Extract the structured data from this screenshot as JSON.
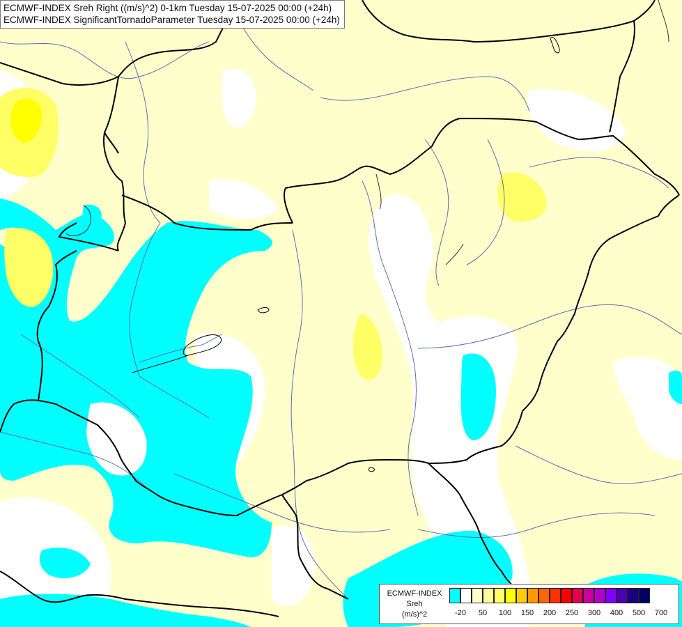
{
  "header": {
    "line1": "ECMWF-INDEX Sreh Right ((m/s)^2) 0-1km Tuesday 15-07-2025 00:00 (+24h)",
    "line2": "ECMWF-INDEX SignificantTornadoParameter Tuesday 15-07-2025 00:00 (+24h)"
  },
  "legend": {
    "title_line1": "ECMWF-INDEX",
    "title_line2": "Sreh",
    "title_line3": "(m/s)^2",
    "colors": [
      "#00ffff",
      "#ffffff",
      "#ffffcc",
      "#ffff99",
      "#ffff66",
      "#ffff00",
      "#ffcc00",
      "#ff9900",
      "#ff6600",
      "#ff3300",
      "#ff0000",
      "#e6004c",
      "#cc0099",
      "#b300cc",
      "#8000ff",
      "#4d00b3",
      "#1a0080",
      "#000066"
    ],
    "ticks": [
      "-20",
      "50",
      "100",
      "150",
      "200",
      "250",
      "300",
      "400",
      "500",
      "700"
    ]
  },
  "map": {
    "background_color": "#ffffcc",
    "low_value_color": "#00ffff",
    "neutral_color": "#ffffff",
    "moderate_color": "#ffff66",
    "high_color": "#ffff00",
    "border_color": "#000000",
    "river_color": "#5a6fb0"
  }
}
